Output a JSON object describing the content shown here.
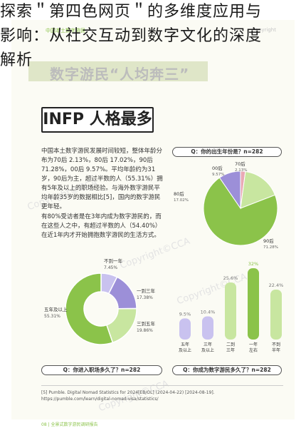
{
  "overlay": {
    "line1": "探索＂第四色网页＂的多维度应用与",
    "line2": "影响：从社交互动到数字文化的深度",
    "line3": "解析"
  },
  "subtitle": "数字游民“人均奔三”",
  "header_left": "中国本土数字游民",
  "header_right": "Copyright",
  "infp_title": "INFP 人格最多",
  "para1": "中国本土数字游民发展时间较短，整体年龄分布为70后 2.13%，80后 17.02%，90后 71.28%，00后 9.57%。平均年龄约为31岁，90后为主，超过半数的人（55.31%）拥有5年及以上的职场经验。与海外数字游民平均年龄35岁的数据相比[5]，国内的数字游民更年轻。",
  "para2": "有80%受访者是在3年内成为数字游民的，而在这些人之中，有超过半数的人（54.40%）在近1年内才开始拥抱数字游民的生活方式。",
  "q1": "Q：你的出生年份是？n=282",
  "q2": "Q：你进入职场多久了？n=282",
  "q3": "Q：你成为数字游民多久了？n=282",
  "footnote": "[5] Pumble. Digital Nomad Statistics for 2024[EB/OL] (2024-04-22) [2024-08-19]. https://pumble.com/learn/digital-nomad-visa/statistics/",
  "footer": "08 | 全景式数字游民调研报告",
  "watermark": "Copyright©CCA",
  "colors": {
    "green": "#8bc34a",
    "lightgreen": "#c8e6a0",
    "purple": "#9c8fd8",
    "lightpurple": "#c9c2ef",
    "pink": "#e9a9b5"
  },
  "chart_data": [
    {
      "type": "pie",
      "title": "Q：你的出生年份是？n=282",
      "categories": [
        "70后",
        "80后",
        "90后",
        "00后"
      ],
      "values": [
        2.13,
        17.02,
        71.28,
        9.57
      ],
      "labels": [
        "2.13%",
        "17.02%",
        "71.28%",
        "9.57%"
      ]
    },
    {
      "type": "pie",
      "title": "Q：你进入职场多久了？n=282",
      "categories": [
        "不到一年",
        "一到三年",
        "三到五年",
        "五年及以上"
      ],
      "values": [
        7.45,
        17.38,
        19.86,
        55.31
      ],
      "labels": [
        "7.45%",
        "17.38%",
        "19.86%",
        "55.31%"
      ]
    },
    {
      "type": "bar",
      "title": "Q：你成为数字游民多久了？n=282",
      "categories": [
        "五年及以上",
        "三年及以上",
        "二到三年",
        "一年左右",
        "不到半年"
      ],
      "values": [
        9.5,
        10.4,
        25.6,
        32,
        22.4
      ],
      "labels": [
        "9.5%",
        "10.4%",
        "25.6%",
        "32%",
        "22.4%"
      ]
    }
  ]
}
